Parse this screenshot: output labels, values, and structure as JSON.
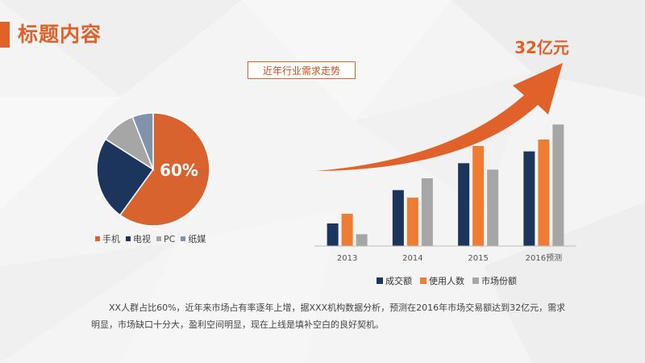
{
  "header": {
    "title": "标题内容"
  },
  "trend_label": "近年行业需求走势",
  "arrow_value": "32亿元",
  "description": "XX人群占比60%，近年来市场占有率逐年上增，据XXX机构数据分析，预测在2016年市场交易额达到32亿元，需求明显，市场缺口十分大，盈利空间明显，现在上线是填补空白的良好契机。",
  "colors": {
    "accent": "#e0612a",
    "navy": "#1b355c",
    "orange": "#ee7d33",
    "gray": "#a6a6a6",
    "slate": "#7f93ad"
  },
  "chart_data": [
    {
      "type": "pie",
      "slices": [
        {
          "name": "手机",
          "value": 60,
          "color": "#d9632f"
        },
        {
          "name": "电视",
          "value": 24,
          "color": "#1b355c"
        },
        {
          "name": "PC",
          "value": 10,
          "color": "#a6a6a6"
        },
        {
          "name": "纸媒",
          "value": 6,
          "color": "#7f93ad"
        }
      ],
      "center_label": "60%",
      "legend": "bottom"
    },
    {
      "type": "bar",
      "categories": [
        "2013",
        "2014",
        "2015",
        "2016预测"
      ],
      "series": [
        {
          "name": "成交额",
          "values": [
            21,
            52,
            77,
            88
          ],
          "color": "#1b355c"
        },
        {
          "name": "使用人数",
          "values": [
            30,
            45,
            93,
            99
          ],
          "color": "#ee7d33"
        },
        {
          "name": "市场份额",
          "values": [
            11,
            63,
            71,
            113
          ],
          "color": "#a6a6a6"
        }
      ],
      "ylim": [
        0,
        120
      ],
      "legend": "bottom",
      "grid": false
    }
  ]
}
